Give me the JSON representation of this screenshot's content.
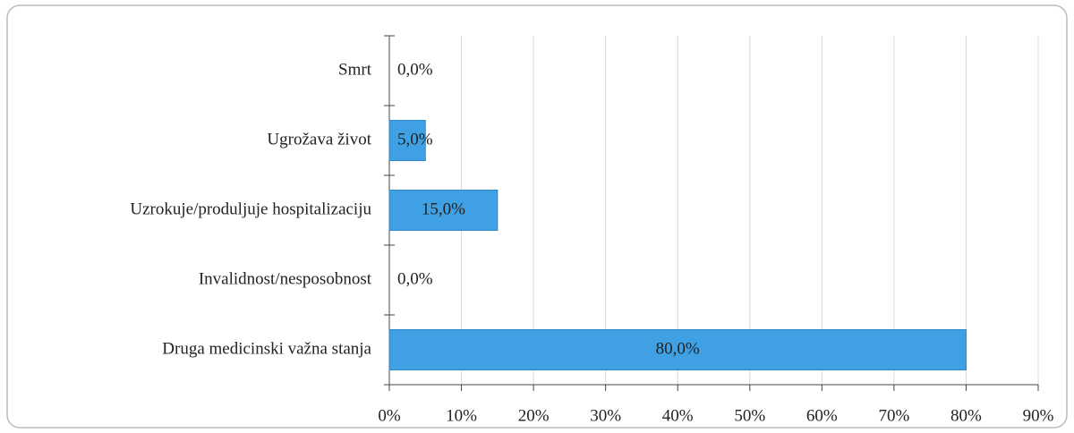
{
  "chart_data": {
    "type": "barh",
    "categories": [
      "Smrt",
      "Ugrožava život",
      "Uzrokuje/produljuje hospitalizaciju",
      "Invalidnost/nesposobnost",
      "Druga medicinski važna stanja"
    ],
    "values": [
      0,
      5,
      15,
      0,
      80
    ],
    "value_labels": [
      "0,0%",
      "5,0%",
      "15,0%",
      "0,0%",
      "80,0%"
    ],
    "color": "#3fa0e3",
    "xlim": [
      0,
      90
    ],
    "xticks": [
      {
        "value": 0,
        "label": "0%"
      },
      {
        "value": 10,
        "label": "10%"
      },
      {
        "value": 20,
        "label": "20%"
      },
      {
        "value": 30,
        "label": "30%"
      },
      {
        "value": 40,
        "label": "40%"
      },
      {
        "value": 50,
        "label": "50%"
      },
      {
        "value": 60,
        "label": "60%"
      },
      {
        "value": 70,
        "label": "70%"
      },
      {
        "value": 80,
        "label": "80%"
      },
      {
        "value": 90,
        "label": "90%"
      }
    ],
    "grid": true
  }
}
